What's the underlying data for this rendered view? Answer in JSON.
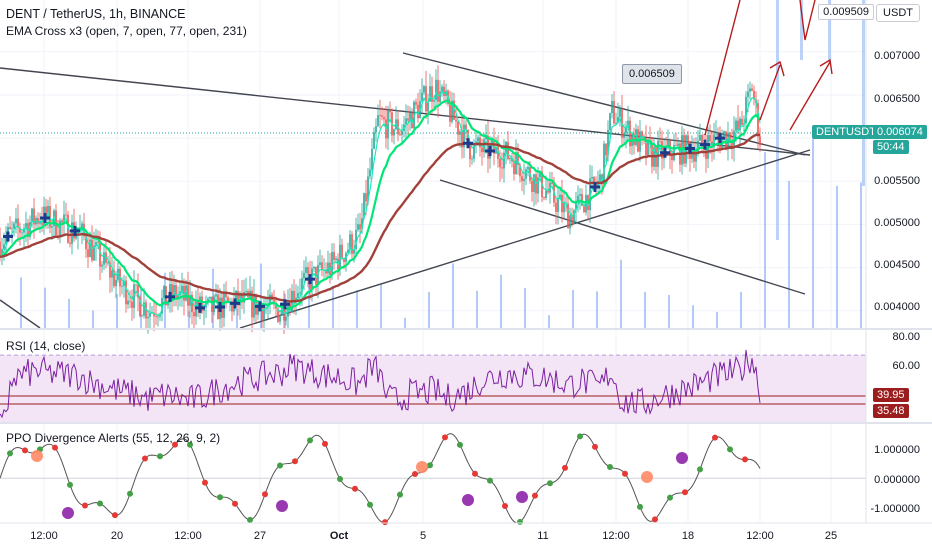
{
  "header": {
    "title": "DENT / TetherUS, 1h, BINANCE",
    "indicator": "EMA Cross x3 (open, 7, open, 77, open, 231)",
    "currency": "USDT"
  },
  "price_axis": {
    "ticks": [
      "0.007000",
      "0.006500",
      "0.006000",
      "0.005500",
      "0.005000",
      "0.004500",
      "0.004000"
    ],
    "top_label": "0.009509",
    "symbol_label": "DENTUSDT",
    "last_price": "0.006074",
    "countdown": "50:44"
  },
  "callout": {
    "value": "0.006509"
  },
  "rsi": {
    "title": "RSI (14, close)",
    "ticks": [
      "80.00",
      "60.00"
    ],
    "value_a": "39.95",
    "value_b": "35.48"
  },
  "ppo": {
    "title": "PPO Divergence Alerts (55, 12, 26, 9, 2)",
    "ticks": [
      "1.000000",
      "0.000000",
      "-1.000000"
    ]
  },
  "time_axis": {
    "labels": [
      "12:00",
      "20",
      "12:00",
      "27",
      "Oct",
      "5",
      "11",
      "12:00",
      "18",
      "12:00",
      "25"
    ]
  },
  "colors": {
    "ema_fast": "#1de9b6",
    "ema_mid": "#00e676",
    "ema_slow": "#a0413a",
    "up": "#26a69a",
    "down": "#ef5350",
    "volume": "#90b4f2",
    "rsi_line": "#7b1fa2",
    "rsi_band": "#f3e5f5",
    "cross": "#1e3a8a",
    "arrow": "#b71c1c"
  },
  "chart_data": [
    {
      "type": "line",
      "title": "DENT / TetherUS, 1h, BINANCE",
      "x": [
        "12:00",
        "20",
        "12:00",
        "27",
        "Oct",
        "5",
        "11",
        "12:00",
        "18",
        "12:00"
      ],
      "series": [
        {
          "name": "close",
          "values": [
            0.0048,
            0.0043,
            0.004,
            0.0041,
            0.0045,
            0.0063,
            0.0054,
            0.0061,
            0.0059,
            0.0061
          ]
        },
        {
          "name": "EMA 7",
          "values": [
            0.0049,
            0.0044,
            0.0041,
            0.0041,
            0.0045,
            0.0061,
            0.0055,
            0.0059,
            0.0059,
            0.006
          ]
        },
        {
          "name": "EMA 77",
          "values": [
            0.0049,
            0.0045,
            0.0042,
            0.0041,
            0.0043,
            0.0059,
            0.0056,
            0.0057,
            0.0058,
            0.0059
          ]
        },
        {
          "name": "EMA 231",
          "values": [
            0.0048,
            0.0046,
            0.0043,
            0.0041,
            0.0043,
            0.0053,
            0.0056,
            0.0056,
            0.0057,
            0.0058
          ]
        }
      ],
      "ylim": [
        0.0038,
        0.0076
      ]
    },
    {
      "type": "line",
      "title": "RSI (14, close)",
      "series": [
        {
          "name": "RSI",
          "values": [
            55,
            45,
            40,
            50,
            48,
            70,
            52,
            68,
            55,
            42
          ]
        }
      ],
      "ylim": [
        30,
        85
      ]
    },
    {
      "type": "line",
      "title": "PPO Divergence Alerts (55, 12, 26, 9, 2)",
      "series": [
        {
          "name": "PPO",
          "values": [
            0.8,
            -0.3,
            -1.0,
            -0.6,
            0.2,
            1.2,
            -0.7,
            0.6,
            -0.2,
            1.4
          ]
        }
      ],
      "ylim": [
        -1.4,
        1.7
      ]
    }
  ]
}
